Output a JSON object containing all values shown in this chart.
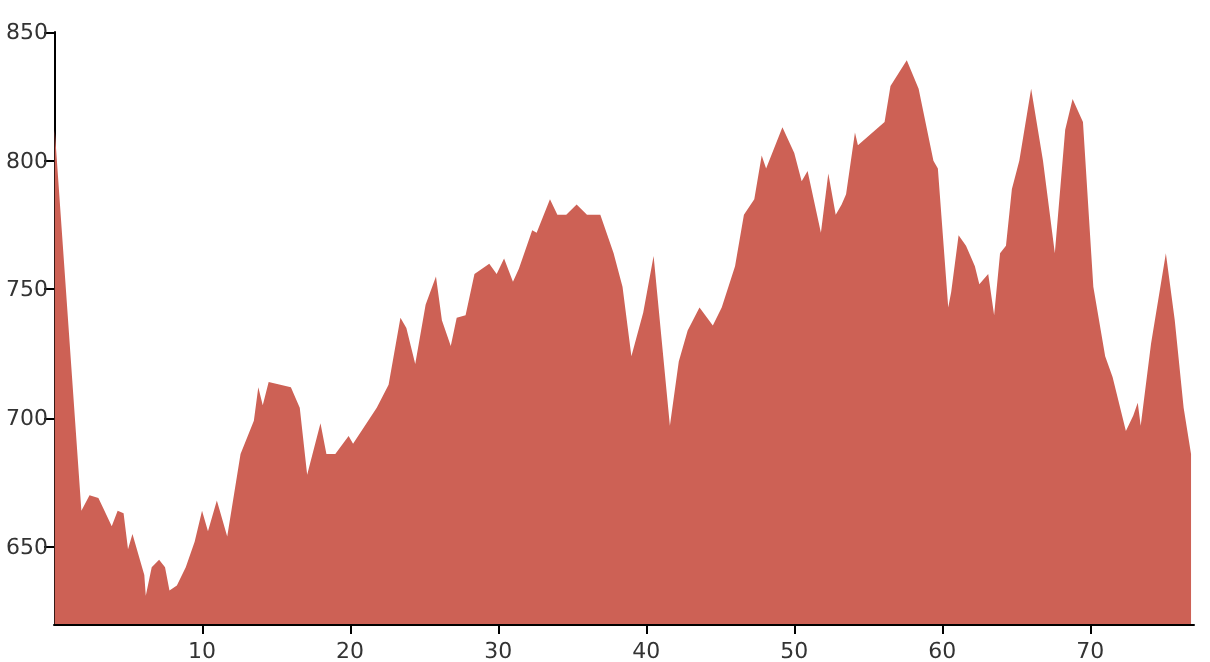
{
  "chart_data": {
    "type": "area",
    "color": "#cd6155",
    "x": [
      0.05,
      1.85,
      2.4,
      3.0,
      3.9,
      4.3,
      4.7,
      5.0,
      5.3,
      6.1,
      6.2,
      6.6,
      7.1,
      7.5,
      7.8,
      8.3,
      8.9,
      9.5,
      10.0,
      10.4,
      11.0,
      11.7,
      12.6,
      13.5,
      13.8,
      14.1,
      14.5,
      16.0,
      16.6,
      17.1,
      18.0,
      18.4,
      19.0,
      19.9,
      20.2,
      21.8,
      22.6,
      23.4,
      23.8,
      24.4,
      25.1,
      25.8,
      26.2,
      26.8,
      27.2,
      27.8,
      28.4,
      29.4,
      29.9,
      30.4,
      31.0,
      31.4,
      32.3,
      32.6,
      33.5,
      34.0,
      34.6,
      35.3,
      36.0,
      36.9,
      37.8,
      38.4,
      39.0,
      39.8,
      40.5,
      41.6,
      42.2,
      42.8,
      43.6,
      44.5,
      45.1,
      46.0,
      46.6,
      47.3,
      47.8,
      48.1,
      49.2,
      50.0,
      50.5,
      50.9,
      51.8,
      52.3,
      52.8,
      53.2,
      53.5,
      54.1,
      54.3,
      56.1,
      56.5,
      57.6,
      58.4,
      59.4,
      59.7,
      60.4,
      60.6,
      61.1,
      61.6,
      62.2,
      62.5,
      63.1,
      63.5,
      63.9,
      64.3,
      64.7,
      65.2,
      66.0,
      66.8,
      67.6,
      68.3,
      68.8,
      69.5,
      70.2,
      71.0,
      71.5,
      72.4,
      72.9,
      73.2,
      73.4,
      74.1,
      75.1,
      75.7,
      76.3,
      76.8
    ],
    "values": [
      812,
      664,
      670,
      669,
      658,
      664,
      663,
      649,
      655,
      639,
      631,
      642,
      645,
      642,
      633,
      635,
      642,
      652,
      664,
      656,
      668,
      654,
      686,
      699,
      712,
      705,
      714,
      712,
      704,
      678,
      698,
      686,
      686,
      693,
      690,
      704,
      713,
      739,
      735,
      721,
      744,
      755,
      738,
      728,
      739,
      740,
      756,
      760,
      756,
      762,
      753,
      758,
      773,
      772,
      785,
      779,
      779,
      783,
      779,
      779,
      764,
      751,
      724,
      741,
      763,
      697,
      722,
      734,
      743,
      736,
      743,
      759,
      779,
      785,
      802,
      797,
      813,
      803,
      792,
      796,
      772,
      795,
      779,
      783,
      787,
      811,
      806,
      815,
      829,
      839,
      828,
      800,
      797,
      743,
      749,
      771,
      767,
      759,
      752,
      756,
      740,
      764,
      767,
      789,
      800,
      828,
      800,
      764,
      812,
      824,
      815,
      751,
      724,
      716,
      695,
      701,
      706,
      697,
      729,
      764,
      738,
      704,
      686
    ],
    "xlim": [
      0,
      77
    ],
    "xticks": [
      10,
      20,
      30,
      40,
      50,
      60,
      70
    ],
    "ylim": [
      620,
      850
    ],
    "yticks": [
      650,
      700,
      750,
      800,
      850
    ],
    "marker": "none"
  }
}
